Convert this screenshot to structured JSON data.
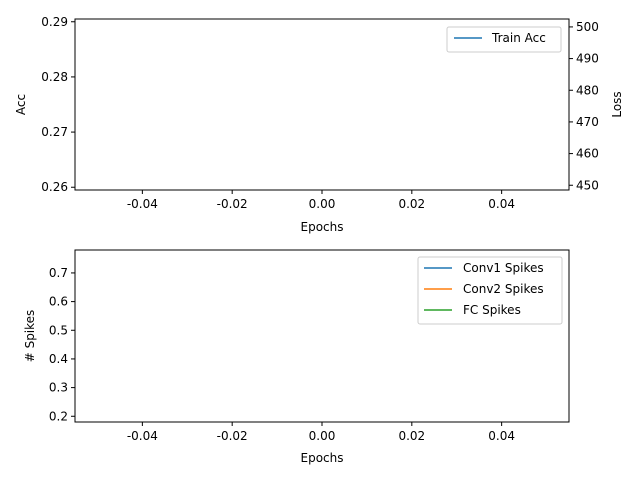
{
  "chart_data": [
    {
      "type": "line",
      "title": "",
      "xlabel": "Epochs",
      "ylabel": "Acc",
      "ylabel_right": "Loss",
      "xlim": [
        -0.055,
        0.055
      ],
      "ylim": [
        0.2595,
        0.2905
      ],
      "ylim_right": [
        448.5,
        502.5
      ],
      "x_ticks": [
        "-0.04",
        "-0.02",
        "0.00",
        "0.02",
        "0.04"
      ],
      "x_tick_values": [
        -0.04,
        -0.02,
        0.0,
        0.02,
        0.04
      ],
      "y_ticks": [
        "0.26",
        "0.27",
        "0.28",
        "0.29"
      ],
      "y_tick_values": [
        0.26,
        0.27,
        0.28,
        0.29
      ],
      "y_ticks_right": [
        "450",
        "460",
        "470",
        "480",
        "490",
        "500"
      ],
      "y_tick_values_right": [
        450,
        460,
        470,
        480,
        490,
        500
      ],
      "grid": false,
      "legend_position": "upper-right",
      "series": [
        {
          "name": "Train Acc",
          "color": "#1f77b4",
          "x": [],
          "values": []
        }
      ]
    },
    {
      "type": "line",
      "title": "",
      "xlabel": "Epochs",
      "ylabel": "# Spikes",
      "xlim": [
        -0.055,
        0.055
      ],
      "ylim": [
        0.18,
        0.78
      ],
      "x_ticks": [
        "-0.04",
        "-0.02",
        "0.00",
        "0.02",
        "0.04"
      ],
      "x_tick_values": [
        -0.04,
        -0.02,
        0.0,
        0.02,
        0.04
      ],
      "y_ticks": [
        "0.2",
        "0.3",
        "0.4",
        "0.5",
        "0.6",
        "0.7"
      ],
      "y_tick_values": [
        0.2,
        0.3,
        0.4,
        0.5,
        0.6,
        0.7
      ],
      "grid": false,
      "legend_position": "upper-right",
      "series": [
        {
          "name": "Conv1 Spikes",
          "color": "#1f77b4",
          "x": [],
          "values": []
        },
        {
          "name": "Conv2 Spikes",
          "color": "#ff7f0e",
          "x": [],
          "values": []
        },
        {
          "name": "FC Spikes",
          "color": "#2ca02c",
          "x": [],
          "values": []
        }
      ]
    }
  ]
}
